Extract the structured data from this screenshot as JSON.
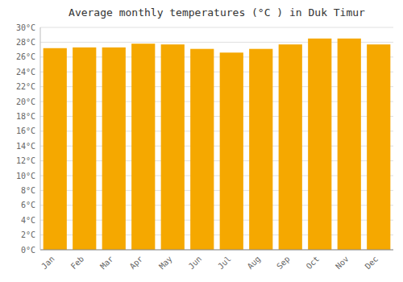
{
  "chart_data": {
    "type": "bar",
    "title": "Average monthly temperatures (°C ) in Duk Timur",
    "categories": [
      "Jan",
      "Feb",
      "Mar",
      "Apr",
      "May",
      "Jun",
      "Jul",
      "Aug",
      "Sep",
      "Oct",
      "Nov",
      "Dec"
    ],
    "values": [
      27.2,
      27.3,
      27.3,
      27.8,
      27.7,
      27.1,
      26.6,
      27.1,
      27.7,
      28.5,
      28.5,
      27.7
    ],
    "color": "#F5A800",
    "ylim": [
      0,
      30
    ],
    "yticks": [
      {
        "value": 0,
        "label": "0°C"
      },
      {
        "value": 2,
        "label": "2°C"
      },
      {
        "value": 4,
        "label": "4°C"
      },
      {
        "value": 6,
        "label": "6°C"
      },
      {
        "value": 8,
        "label": "8°C"
      },
      {
        "value": 10,
        "label": "10°C"
      },
      {
        "value": 12,
        "label": "12°C"
      },
      {
        "value": 14,
        "label": "14°C"
      },
      {
        "value": 16,
        "label": "16°C"
      },
      {
        "value": 18,
        "label": "18°C"
      },
      {
        "value": 20,
        "label": "20°C"
      },
      {
        "value": 22,
        "label": "22°C"
      },
      {
        "value": 24,
        "label": "24°C"
      },
      {
        "value": 26,
        "label": "26°C"
      },
      {
        "value": 28,
        "label": "28°C"
      },
      {
        "value": 30,
        "label": "30°C"
      }
    ],
    "grid": true
  }
}
